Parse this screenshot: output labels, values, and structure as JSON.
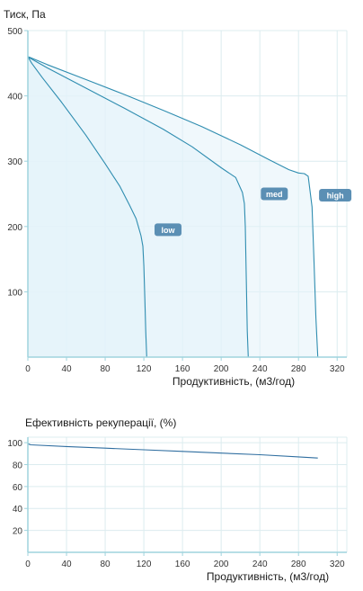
{
  "chart_data": [
    {
      "type": "area",
      "title": "Тиск, Па",
      "xlabel": "Продуктивність, (м3/год)",
      "ylabel": "",
      "xlim": [
        0,
        330
      ],
      "ylim": [
        0,
        500
      ],
      "xticks": [
        0,
        40,
        80,
        120,
        160,
        200,
        240,
        280,
        320
      ],
      "yticks": [
        100,
        200,
        300,
        400,
        500
      ],
      "grid": true,
      "series": [
        {
          "name": "high",
          "x": [
            0,
            2,
            20,
            60,
            100,
            140,
            180,
            220,
            250,
            270,
            280,
            286,
            290,
            294,
            296,
            298,
            300
          ],
          "y": [
            460,
            459,
            448,
            425,
            402,
            378,
            353,
            325,
            302,
            287,
            282,
            281,
            277,
            230,
            150,
            60,
            0
          ]
        },
        {
          "name": "med",
          "x": [
            0,
            2,
            20,
            60,
            100,
            140,
            170,
            200,
            215,
            222,
            224,
            225,
            226,
            227,
            228
          ],
          "y": [
            460,
            458,
            443,
            412,
            381,
            349,
            322,
            290,
            275,
            252,
            235,
            200,
            120,
            40,
            0
          ]
        },
        {
          "name": "low",
          "x": [
            0,
            4,
            15,
            35,
            60,
            80,
            95,
            105,
            112,
            117,
            119,
            120,
            121,
            122,
            123
          ],
          "y": [
            460,
            450,
            428,
            390,
            340,
            296,
            262,
            233,
            212,
            186,
            170,
            140,
            90,
            40,
            0
          ]
        }
      ],
      "labels": [
        "low",
        "med",
        "high"
      ],
      "colors": {
        "line": "#2f8db0",
        "fill": "#e3f3fa",
        "badge": "#5b8fb4"
      }
    },
    {
      "type": "line",
      "title": "Ефективність рекуперації, (%)",
      "xlabel": "Продуктивність, (м3/год)",
      "ylabel": "",
      "xlim": [
        0,
        330
      ],
      "ylim": [
        0,
        105
      ],
      "xticks": [
        0,
        40,
        80,
        120,
        160,
        200,
        240,
        280,
        320
      ],
      "yticks": [
        20,
        40,
        60,
        80,
        100
      ],
      "grid": true,
      "series": [
        {
          "x": [
            0,
            3,
            40,
            80,
            120,
            160,
            200,
            240,
            280,
            300
          ],
          "y": [
            99,
            98,
            96.5,
            95,
            93.5,
            92,
            90.5,
            89,
            87,
            86
          ]
        }
      ],
      "colors": {
        "line": "#2f6ea0"
      }
    }
  ]
}
